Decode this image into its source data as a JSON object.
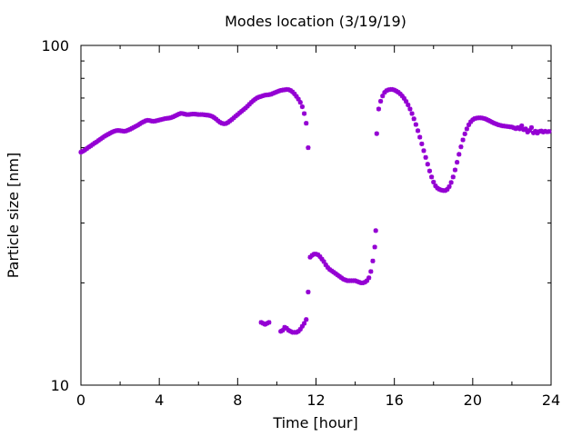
{
  "chart_data": {
    "type": "scatter",
    "title": "Modes location (3/19/19)",
    "xlabel": "Time [hour]",
    "ylabel": "Particle size [nm]",
    "xlim": [
      0,
      24
    ],
    "ylim": [
      10,
      100
    ],
    "yscale": "log",
    "grid": false,
    "legend": "none",
    "marker_color": "#9400d3",
    "x_ticks": [
      0,
      4,
      8,
      12,
      16,
      20,
      24
    ],
    "x_tick_labels": [
      "0",
      "4",
      "8",
      "12",
      "16",
      "20",
      "24"
    ],
    "y_ticks": [
      10,
      100
    ],
    "y_tick_labels": [
      "10",
      "100"
    ],
    "series": [
      {
        "marker": "star",
        "points": [
          [
            0.0,
            48.5
          ],
          [
            0.1,
            48.8
          ],
          [
            0.2,
            49.2
          ],
          [
            0.3,
            49.7
          ],
          [
            0.4,
            50.2
          ],
          [
            0.5,
            50.6
          ],
          [
            0.6,
            51.1
          ],
          [
            0.7,
            51.6
          ],
          [
            0.8,
            52.0
          ],
          [
            0.9,
            52.5
          ],
          [
            1.0,
            53.0
          ],
          [
            1.1,
            53.5
          ],
          [
            1.2,
            54.0
          ],
          [
            1.3,
            54.4
          ],
          [
            1.4,
            54.8
          ],
          [
            1.5,
            55.2
          ],
          [
            1.6,
            55.6
          ],
          [
            1.7,
            55.9
          ],
          [
            1.8,
            56.1
          ],
          [
            1.9,
            56.2
          ],
          [
            2.0,
            56.1
          ],
          [
            2.1,
            56.0
          ],
          [
            2.2,
            55.9
          ],
          [
            2.3,
            56.0
          ],
          [
            2.4,
            56.3
          ],
          [
            2.5,
            56.6
          ],
          [
            2.6,
            57.0
          ],
          [
            2.7,
            57.4
          ],
          [
            2.8,
            57.8
          ],
          [
            2.9,
            58.2
          ],
          [
            3.0,
            58.7
          ],
          [
            3.1,
            59.2
          ],
          [
            3.2,
            59.6
          ],
          [
            3.3,
            60.0
          ],
          [
            3.4,
            60.2
          ],
          [
            3.5,
            60.1
          ],
          [
            3.6,
            59.9
          ],
          [
            3.7,
            59.8
          ],
          [
            3.8,
            59.9
          ],
          [
            3.9,
            60.1
          ],
          [
            4.0,
            60.3
          ],
          [
            4.1,
            60.5
          ],
          [
            4.2,
            60.7
          ],
          [
            4.3,
            60.9
          ],
          [
            4.4,
            61.0
          ],
          [
            4.5,
            61.1
          ],
          [
            4.6,
            61.3
          ],
          [
            4.7,
            61.6
          ],
          [
            4.8,
            62.0
          ],
          [
            4.9,
            62.4
          ],
          [
            5.0,
            62.8
          ],
          [
            5.1,
            63.1
          ],
          [
            5.2,
            63.0
          ],
          [
            5.3,
            62.8
          ],
          [
            5.4,
            62.6
          ],
          [
            5.5,
            62.6
          ],
          [
            5.6,
            62.7
          ],
          [
            5.7,
            62.8
          ],
          [
            5.8,
            62.8
          ],
          [
            5.9,
            62.7
          ],
          [
            6.0,
            62.6
          ],
          [
            6.1,
            62.6
          ],
          [
            6.2,
            62.6
          ],
          [
            6.3,
            62.5
          ],
          [
            6.4,
            62.4
          ],
          [
            6.5,
            62.3
          ],
          [
            6.6,
            62.1
          ],
          [
            6.7,
            61.8
          ],
          [
            6.8,
            61.3
          ],
          [
            6.9,
            60.7
          ],
          [
            7.0,
            60.0
          ],
          [
            7.1,
            59.4
          ],
          [
            7.2,
            59.0
          ],
          [
            7.3,
            58.8
          ],
          [
            7.4,
            58.9
          ],
          [
            7.5,
            59.3
          ],
          [
            7.6,
            59.9
          ],
          [
            7.7,
            60.5
          ],
          [
            7.8,
            61.2
          ],
          [
            7.9,
            61.9
          ],
          [
            8.0,
            62.6
          ],
          [
            8.1,
            63.3
          ],
          [
            8.2,
            64.0
          ],
          [
            8.3,
            64.7
          ],
          [
            8.4,
            65.4
          ],
          [
            8.5,
            66.2
          ],
          [
            8.6,
            67.1
          ],
          [
            8.7,
            68.0
          ],
          [
            8.8,
            68.8
          ],
          [
            8.9,
            69.5
          ],
          [
            9.0,
            70.1
          ],
          [
            9.1,
            70.5
          ],
          [
            9.2,
            70.8
          ],
          [
            9.3,
            71.1
          ],
          [
            9.4,
            71.4
          ],
          [
            9.5,
            71.5
          ],
          [
            9.6,
            71.6
          ],
          [
            9.7,
            71.8
          ],
          [
            9.8,
            72.2
          ],
          [
            9.9,
            72.6
          ],
          [
            10.0,
            73.0
          ],
          [
            10.1,
            73.4
          ],
          [
            10.2,
            73.7
          ],
          [
            10.3,
            73.9
          ],
          [
            10.4,
            74.0
          ],
          [
            10.5,
            74.2
          ],
          [
            10.6,
            74.1
          ],
          [
            10.7,
            73.7
          ],
          [
            10.8,
            73.0
          ],
          [
            10.9,
            72.0
          ],
          [
            11.0,
            70.8
          ],
          [
            11.1,
            69.5
          ],
          [
            11.2,
            68.0
          ],
          [
            11.3,
            66.0
          ],
          [
            11.4,
            63.0
          ],
          [
            11.5,
            59.0
          ],
          [
            11.6,
            50.0
          ],
          [
            9.2,
            15.3
          ],
          [
            9.3,
            15.2
          ],
          [
            9.4,
            15.1
          ],
          [
            9.5,
            15.2
          ],
          [
            9.6,
            15.3
          ],
          [
            10.2,
            14.4
          ],
          [
            10.3,
            14.5
          ],
          [
            10.4,
            14.8
          ],
          [
            10.5,
            14.7
          ],
          [
            10.6,
            14.5
          ],
          [
            10.7,
            14.4
          ],
          [
            10.8,
            14.3
          ],
          [
            10.9,
            14.3
          ],
          [
            11.0,
            14.3
          ],
          [
            11.1,
            14.4
          ],
          [
            11.2,
            14.6
          ],
          [
            11.3,
            14.9
          ],
          [
            11.4,
            15.2
          ],
          [
            11.5,
            15.6
          ],
          [
            11.6,
            18.8
          ],
          [
            11.7,
            23.8
          ],
          [
            11.8,
            24.1
          ],
          [
            11.9,
            24.3
          ],
          [
            12.0,
            24.3
          ],
          [
            12.1,
            24.2
          ],
          [
            12.2,
            23.9
          ],
          [
            12.3,
            23.5
          ],
          [
            12.4,
            23.1
          ],
          [
            12.5,
            22.6
          ],
          [
            12.6,
            22.2
          ],
          [
            12.7,
            21.9
          ],
          [
            12.8,
            21.7
          ],
          [
            12.9,
            21.5
          ],
          [
            13.0,
            21.3
          ],
          [
            13.1,
            21.1
          ],
          [
            13.2,
            20.9
          ],
          [
            13.3,
            20.7
          ],
          [
            13.4,
            20.5
          ],
          [
            13.5,
            20.4
          ],
          [
            13.6,
            20.3
          ],
          [
            13.7,
            20.3
          ],
          [
            13.8,
            20.3
          ],
          [
            13.9,
            20.3
          ],
          [
            14.0,
            20.3
          ],
          [
            14.1,
            20.2
          ],
          [
            14.2,
            20.1
          ],
          [
            14.3,
            20.0
          ],
          [
            14.4,
            20.0
          ],
          [
            14.5,
            20.1
          ],
          [
            14.6,
            20.3
          ],
          [
            14.7,
            20.7
          ],
          [
            14.8,
            21.6
          ],
          [
            14.9,
            23.2
          ],
          [
            15.0,
            25.5
          ],
          [
            15.05,
            28.5
          ],
          [
            15.1,
            55.0
          ],
          [
            15.2,
            65.0
          ],
          [
            15.3,
            68.5
          ],
          [
            15.4,
            71.0
          ],
          [
            15.5,
            72.7
          ],
          [
            15.6,
            73.6
          ],
          [
            15.7,
            74.0
          ],
          [
            15.8,
            74.2
          ],
          [
            15.9,
            74.2
          ],
          [
            16.0,
            73.9
          ],
          [
            16.1,
            73.4
          ],
          [
            16.2,
            72.8
          ],
          [
            16.3,
            72.0
          ],
          [
            16.4,
            71.0
          ],
          [
            16.5,
            69.8
          ],
          [
            16.6,
            68.4
          ],
          [
            16.7,
            66.8
          ],
          [
            16.8,
            65.0
          ],
          [
            16.9,
            63.0
          ],
          [
            17.0,
            60.8
          ],
          [
            17.1,
            58.5
          ],
          [
            17.2,
            56.1
          ],
          [
            17.3,
            53.7
          ],
          [
            17.4,
            51.3
          ],
          [
            17.5,
            49.0
          ],
          [
            17.6,
            46.8
          ],
          [
            17.7,
            44.7
          ],
          [
            17.8,
            42.7
          ],
          [
            17.9,
            41.0
          ],
          [
            18.0,
            39.6
          ],
          [
            18.1,
            38.6
          ],
          [
            18.2,
            38.0
          ],
          [
            18.3,
            37.7
          ],
          [
            18.4,
            37.5
          ],
          [
            18.5,
            37.4
          ],
          [
            18.6,
            37.4
          ],
          [
            18.7,
            37.7
          ],
          [
            18.8,
            38.4
          ],
          [
            18.9,
            39.5
          ],
          [
            19.0,
            41.0
          ],
          [
            19.1,
            43.0
          ],
          [
            19.2,
            45.3
          ],
          [
            19.3,
            47.8
          ],
          [
            19.4,
            50.3
          ],
          [
            19.5,
            52.7
          ],
          [
            19.6,
            54.9
          ],
          [
            19.7,
            56.8
          ],
          [
            19.8,
            58.4
          ],
          [
            19.9,
            59.6
          ],
          [
            20.0,
            60.4
          ],
          [
            20.1,
            60.9
          ],
          [
            20.2,
            61.1
          ],
          [
            20.3,
            61.2
          ],
          [
            20.4,
            61.2
          ],
          [
            20.5,
            61.1
          ],
          [
            20.6,
            60.9
          ],
          [
            20.7,
            60.6
          ],
          [
            20.8,
            60.2
          ],
          [
            20.9,
            59.8
          ],
          [
            21.0,
            59.4
          ],
          [
            21.1,
            59.0
          ],
          [
            21.2,
            58.7
          ],
          [
            21.3,
            58.4
          ],
          [
            21.4,
            58.2
          ],
          [
            21.5,
            58.0
          ],
          [
            21.6,
            57.9
          ],
          [
            21.7,
            57.8
          ],
          [
            21.8,
            57.7
          ],
          [
            21.9,
            57.6
          ],
          [
            22.0,
            57.5
          ],
          [
            22.1,
            57.2
          ],
          [
            22.2,
            56.9
          ],
          [
            22.3,
            57.3
          ],
          [
            22.4,
            56.8
          ],
          [
            22.5,
            58.0
          ],
          [
            22.6,
            56.5
          ],
          [
            22.7,
            56.8
          ],
          [
            22.8,
            55.6
          ],
          [
            22.9,
            56.2
          ],
          [
            23.0,
            57.3
          ],
          [
            23.1,
            55.3
          ],
          [
            23.2,
            55.9
          ],
          [
            23.3,
            55.2
          ],
          [
            23.4,
            55.8
          ],
          [
            23.5,
            56.0
          ],
          [
            23.6,
            55.6
          ],
          [
            23.7,
            55.9
          ],
          [
            23.8,
            55.7
          ],
          [
            23.9,
            55.8
          ]
        ]
      }
    ]
  }
}
